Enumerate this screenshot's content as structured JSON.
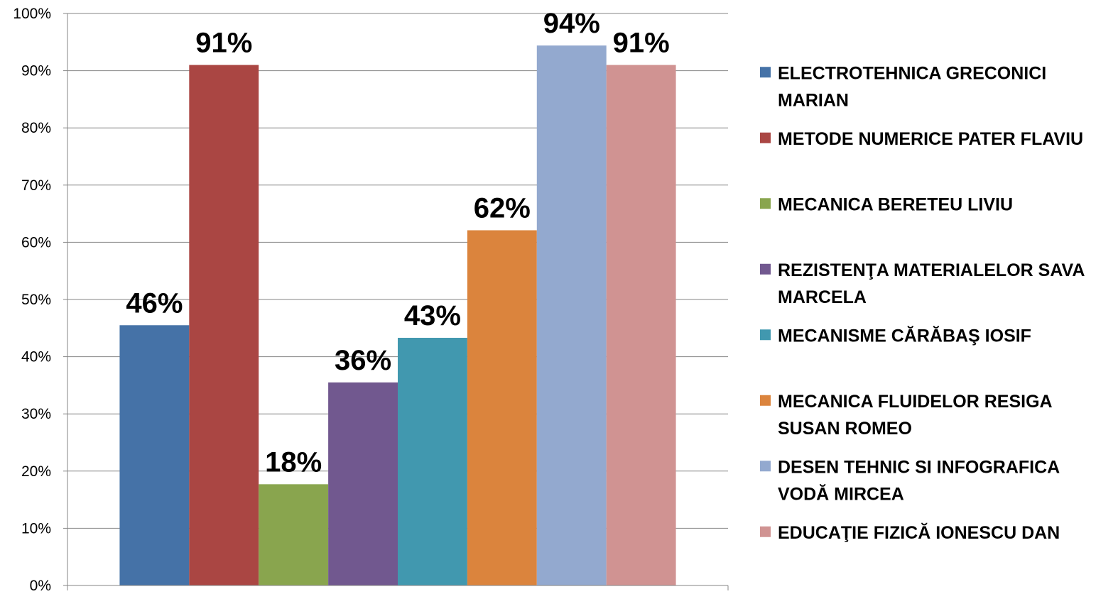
{
  "chart_data": {
    "type": "bar",
    "ylim": [
      0,
      100
    ],
    "y_ticks": [
      "0%",
      "10%",
      "20%",
      "30%",
      "40%",
      "50%",
      "60%",
      "70%",
      "80%",
      "90%",
      "100%"
    ],
    "grid": true,
    "legend_position": "right",
    "series": [
      {
        "name": "ELECTROTEHNICA GRECONICI MARIAN",
        "value": 45.5,
        "label": "46%",
        "color": "#4572A7"
      },
      {
        "name": "METODE NUMERICE PATER FLAVIU",
        "value": 91,
        "label": "91%",
        "color": "#AA4643"
      },
      {
        "name": "MECANICA BERETEU LIVIU",
        "value": 17.7,
        "label": "18%",
        "color": "#89A54E"
      },
      {
        "name": "REZISTENŢA MATERIALELOR SAVA MARCELA",
        "value": 35.5,
        "label": "36%",
        "color": "#71588F"
      },
      {
        "name": "MECANISME CĂRĂBAŞ IOSIF",
        "value": 43.3,
        "label": "43%",
        "color": "#4198AF"
      },
      {
        "name": "MECANICA FLUIDELOR  RESIGA SUSAN ROMEO",
        "value": 62.1,
        "label": "62%",
        "color": "#DB843D"
      },
      {
        "name": "DESEN TEHNIC SI INFOGRAFICA VODĂ MIRCEA",
        "value": 94.4,
        "label": "94%",
        "color": "#93A9CF"
      },
      {
        "name": "EDUCAŢIE FIZICĂ IONESCU DAN",
        "value": 91,
        "label": "91%",
        "color": "#D09392"
      }
    ]
  }
}
